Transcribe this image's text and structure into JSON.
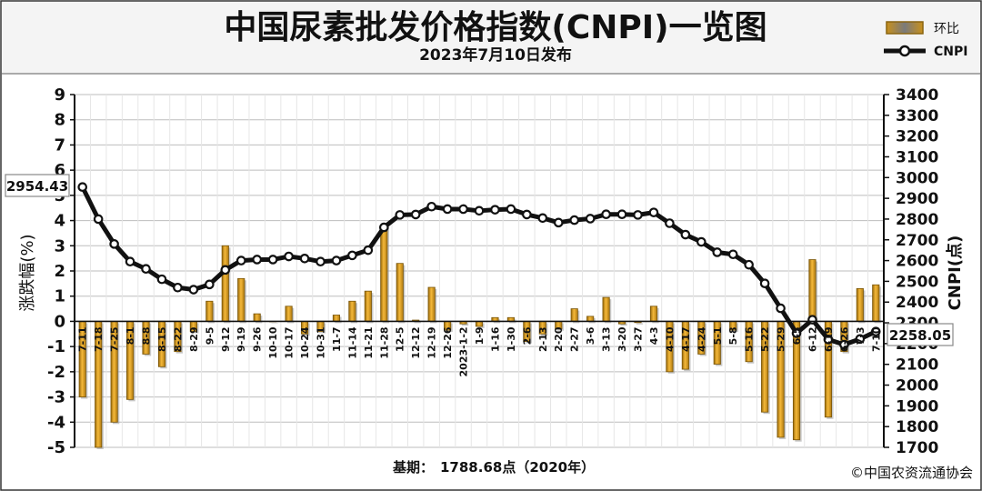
{
  "header": {
    "title": "中国尿素批发价格指数(CNPI)一览图",
    "subtitle": "2023年7月10日发布"
  },
  "footer": {
    "base_label": "基期：",
    "base_value": "1788.68点（2020年）",
    "copyright": "©中国农资流通协会"
  },
  "callouts": {
    "first": "2954.43",
    "last": "2258.05"
  },
  "colors": {
    "bar": "#e8a21a",
    "bar_edge": "#7a5608",
    "line": "#111111",
    "bg": "#ffffff"
  },
  "chart_data": {
    "type": "bar+line",
    "title": "中国尿素批发价格指数(CNPI)一览图",
    "subtitle": "2023年7月10日发布",
    "legend_placement": "top-right",
    "grid": true,
    "y_left": {
      "label": "涨跌幅(%)",
      "range": [
        -5,
        9
      ],
      "ticks": [
        "9",
        "8",
        "7",
        "6",
        "5",
        "4",
        "3",
        "2",
        "1",
        "0",
        "-1",
        "-2",
        "-3",
        "-4",
        "-5"
      ]
    },
    "y_right": {
      "label": "CNPI(点)",
      "range": [
        1700,
        3400
      ],
      "ticks": [
        "3400",
        "3300",
        "3200",
        "3100",
        "3000",
        "2900",
        "2800",
        "2700",
        "2600",
        "2500",
        "2400",
        "2300",
        "2200",
        "2100",
        "2000",
        "1900",
        "1800",
        "1700"
      ]
    },
    "categories": [
      "7-11",
      "7-18",
      "7-25",
      "8-1",
      "8-8",
      "8-15",
      "8-22",
      "8-29",
      "9-5",
      "9-12",
      "9-19",
      "9-26",
      "10-10",
      "10-17",
      "10-24",
      "10-31",
      "11-7",
      "11-14",
      "11-21",
      "11-28",
      "12-5",
      "12-12",
      "12-19",
      "12-26",
      "2023-1-2",
      "1-9",
      "1-16",
      "1-30",
      "2-6",
      "2-13",
      "2-20",
      "2-27",
      "3-6",
      "3-13",
      "3-20",
      "3-27",
      "4-3",
      "4-10",
      "4-17",
      "4-24",
      "5-1",
      "5-8",
      "5-16",
      "5-22",
      "5-29",
      "6-5",
      "6-12",
      "6-19",
      "6-26",
      "7-3",
      "7-10"
    ],
    "series": [
      {
        "name": "环比",
        "kind": "bar",
        "axis": "left",
        "values": [
          -3.0,
          -5.0,
          -4.0,
          -3.1,
          -1.3,
          -1.8,
          -1.2,
          -0.4,
          0.8,
          3.0,
          1.7,
          0.3,
          0.0,
          0.6,
          -0.5,
          -0.4,
          0.25,
          0.8,
          1.2,
          3.8,
          2.3,
          0.05,
          1.35,
          -0.35,
          -0.1,
          -0.2,
          0.15,
          0.15,
          -0.8,
          -0.5,
          -0.3,
          0.5,
          0.2,
          0.95,
          -0.1,
          -0.05,
          0.6,
          -2.0,
          -1.9,
          -1.3,
          -1.7,
          -0.35,
          -1.6,
          -3.6,
          -4.6,
          -4.7,
          2.45,
          -3.8,
          -1.2,
          1.3,
          1.45
        ]
      },
      {
        "name": "CNPI",
        "kind": "line",
        "axis": "right",
        "values": [
          2954.43,
          2800,
          2680,
          2595,
          2560,
          2510,
          2470,
          2460,
          2485,
          2555,
          2600,
          2605,
          2605,
          2620,
          2610,
          2595,
          2600,
          2625,
          2650,
          2760,
          2820,
          2822,
          2860,
          2848,
          2848,
          2840,
          2845,
          2848,
          2822,
          2805,
          2783,
          2795,
          2802,
          2823,
          2823,
          2820,
          2832,
          2780,
          2725,
          2690,
          2640,
          2630,
          2580,
          2490,
          2370,
          2250,
          2315,
          2220,
          2195,
          2222,
          2258.05
        ]
      }
    ]
  }
}
